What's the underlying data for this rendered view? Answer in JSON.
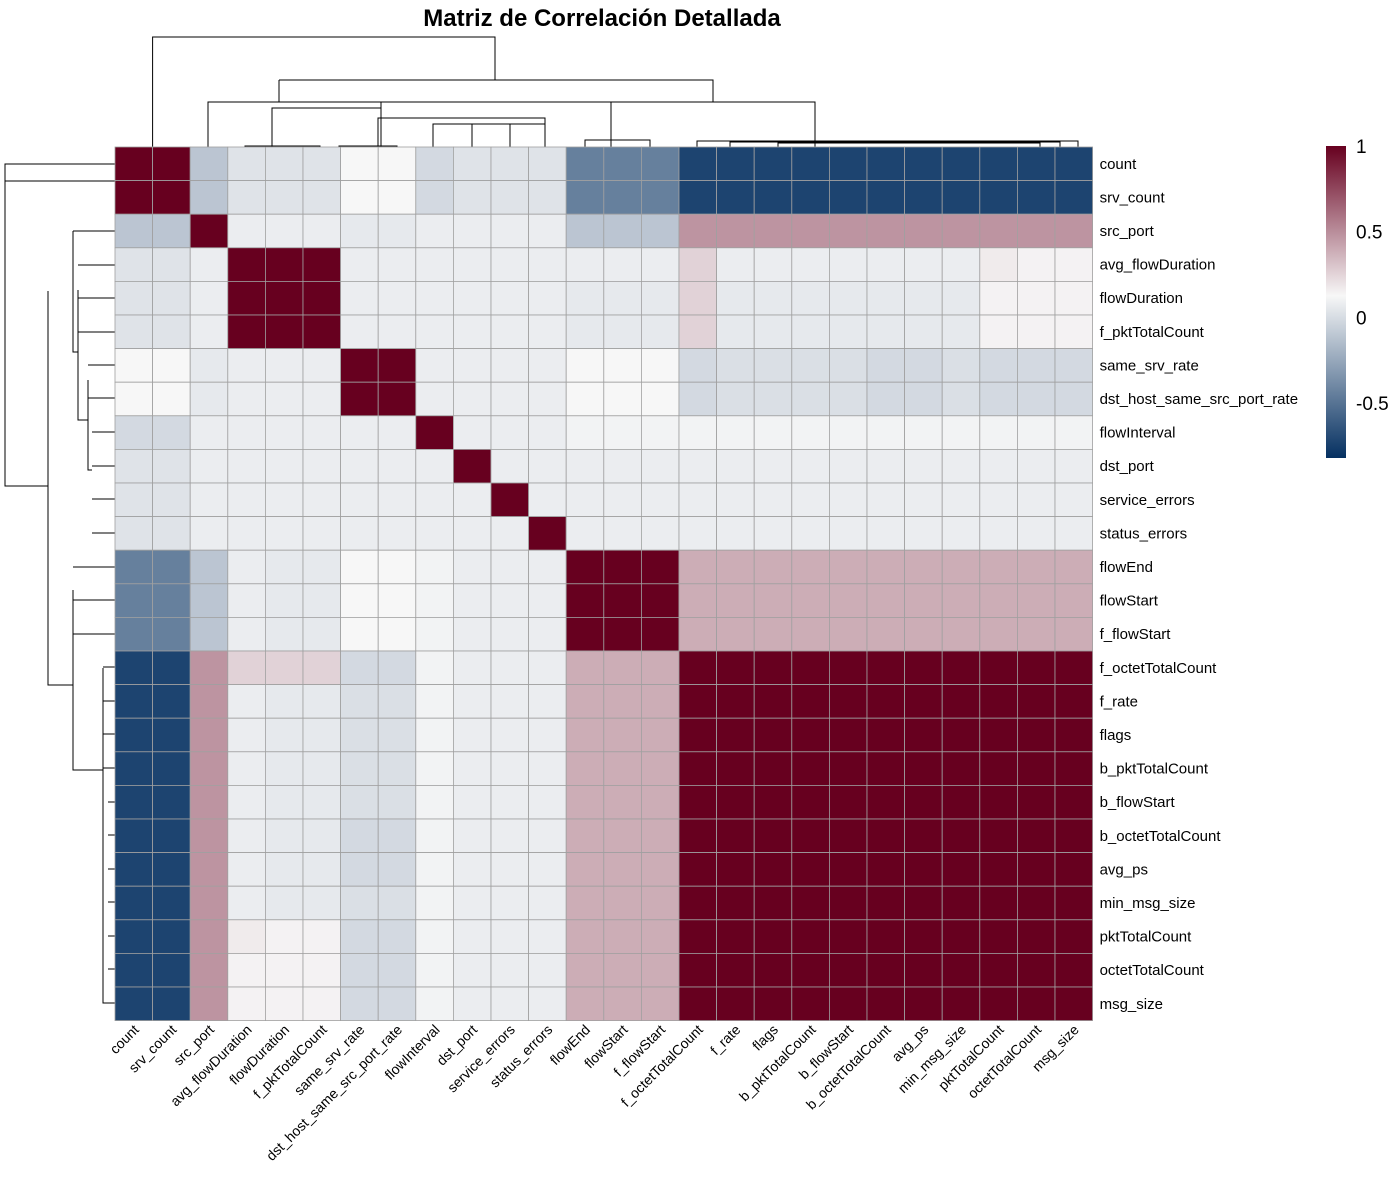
{
  "chart_data": {
    "type": "heatmap",
    "title": "Matriz de Correlación Detallada",
    "row_labels": [
      "count",
      "srv_count",
      "src_port",
      "avg_flowDuration",
      "flowDuration",
      "f_pktTotalCount",
      "same_srv_rate",
      "dst_host_same_src_port_rate",
      "flowInterval",
      "dst_port",
      "service_errors",
      "status_errors",
      "flowEnd",
      "flowStart",
      "f_flowStart",
      "f_octetTotalCount",
      "f_rate",
      "flags",
      "b_pktTotalCount",
      "b_flowStart",
      "b_octetTotalCount",
      "avg_ps",
      "min_msg_size",
      "pktTotalCount",
      "octetTotalCount",
      "msg_size"
    ],
    "col_labels": [
      "count",
      "srv_count",
      "src_port",
      "avg_flowDuration",
      "flowDuration",
      "f_pktTotalCount",
      "same_srv_rate",
      "dst_host_same_src_port_rate",
      "flowInterval",
      "dst_port",
      "service_errors",
      "status_errors",
      "flowEnd",
      "flowStart",
      "f_flowStart",
      "f_octetTotalCount",
      "f_rate",
      "flags",
      "b_pktTotalCount",
      "b_flowStart",
      "b_octetTotalCount",
      "avg_ps",
      "min_msg_size",
      "pktTotalCount",
      "octetTotalCount",
      "msg_size"
    ],
    "values": [
      [
        1,
        1,
        -0.25,
        -0.1,
        -0.1,
        -0.1,
        0,
        0,
        -0.15,
        -0.1,
        -0.1,
        -0.1,
        -0.6,
        -0.6,
        -0.6,
        -0.9,
        -0.9,
        -0.9,
        -0.9,
        -0.9,
        -0.9,
        -0.9,
        -0.9,
        -0.9,
        -0.9,
        -0.9
      ],
      [
        1,
        1,
        -0.25,
        -0.1,
        -0.1,
        -0.1,
        0,
        0,
        -0.15,
        -0.1,
        -0.1,
        -0.1,
        -0.6,
        -0.6,
        -0.6,
        -0.9,
        -0.9,
        -0.9,
        -0.9,
        -0.9,
        -0.9,
        -0.9,
        -0.9,
        -0.9,
        -0.9,
        -0.9
      ],
      [
        -0.25,
        -0.25,
        1,
        -0.05,
        -0.05,
        -0.05,
        -0.07,
        -0.07,
        -0.05,
        -0.05,
        -0.05,
        -0.05,
        -0.25,
        -0.25,
        -0.25,
        0.4,
        0.4,
        0.4,
        0.4,
        0.4,
        0.4,
        0.4,
        0.4,
        0.4,
        0.4,
        0.4
      ],
      [
        -0.1,
        -0.1,
        -0.05,
        1,
        1,
        1,
        -0.05,
        -0.05,
        -0.05,
        -0.05,
        -0.05,
        -0.05,
        -0.05,
        -0.05,
        -0.05,
        0.15,
        -0.05,
        -0.05,
        -0.05,
        -0.05,
        -0.05,
        -0.05,
        -0.05,
        0.05,
        0.02,
        0.02
      ],
      [
        -0.1,
        -0.1,
        -0.05,
        1,
        1,
        1,
        -0.05,
        -0.05,
        -0.05,
        -0.05,
        -0.05,
        -0.05,
        -0.07,
        -0.07,
        -0.07,
        0.15,
        -0.07,
        -0.07,
        -0.07,
        -0.07,
        -0.07,
        -0.07,
        -0.07,
        0.02,
        0.02,
        0.02
      ],
      [
        -0.1,
        -0.1,
        -0.05,
        1,
        1,
        1,
        -0.05,
        -0.05,
        -0.05,
        -0.05,
        -0.05,
        -0.05,
        -0.07,
        -0.07,
        -0.07,
        0.15,
        -0.07,
        -0.07,
        -0.07,
        -0.07,
        -0.07,
        -0.07,
        -0.07,
        0.02,
        0.02,
        0.02
      ],
      [
        0,
        0,
        -0.07,
        -0.05,
        -0.05,
        -0.05,
        1,
        1,
        -0.05,
        -0.05,
        -0.05,
        -0.05,
        0,
        0,
        0,
        -0.15,
        -0.12,
        -0.12,
        -0.12,
        -0.12,
        -0.15,
        -0.15,
        -0.12,
        -0.15,
        -0.15,
        -0.15
      ],
      [
        0,
        0,
        -0.07,
        -0.05,
        -0.05,
        -0.05,
        1,
        1,
        -0.05,
        -0.05,
        -0.05,
        -0.05,
        0,
        0,
        0,
        -0.15,
        -0.12,
        -0.12,
        -0.12,
        -0.12,
        -0.15,
        -0.15,
        -0.12,
        -0.15,
        -0.15,
        -0.15
      ],
      [
        -0.15,
        -0.15,
        -0.05,
        -0.05,
        -0.05,
        -0.05,
        -0.05,
        -0.05,
        1,
        -0.05,
        -0.05,
        -0.05,
        -0.02,
        -0.02,
        -0.02,
        -0.02,
        -0.02,
        -0.02,
        -0.02,
        -0.02,
        -0.02,
        -0.02,
        -0.02,
        -0.02,
        -0.02,
        -0.02
      ],
      [
        -0.1,
        -0.1,
        -0.05,
        -0.05,
        -0.05,
        -0.05,
        -0.05,
        -0.05,
        -0.05,
        1,
        -0.05,
        -0.05,
        -0.05,
        -0.05,
        -0.05,
        -0.05,
        -0.05,
        -0.05,
        -0.05,
        -0.05,
        -0.05,
        -0.05,
        -0.05,
        -0.05,
        -0.05,
        -0.05
      ],
      [
        -0.1,
        -0.1,
        -0.05,
        -0.05,
        -0.05,
        -0.05,
        -0.05,
        -0.05,
        -0.05,
        -0.05,
        1,
        -0.05,
        -0.05,
        -0.05,
        -0.05,
        -0.05,
        -0.05,
        -0.05,
        -0.05,
        -0.05,
        -0.05,
        -0.05,
        -0.05,
        -0.05,
        -0.05,
        -0.05
      ],
      [
        -0.1,
        -0.1,
        -0.05,
        -0.05,
        -0.05,
        -0.05,
        -0.05,
        -0.05,
        -0.05,
        -0.05,
        -0.05,
        1,
        -0.05,
        -0.05,
        -0.05,
        -0.05,
        -0.05,
        -0.05,
        -0.05,
        -0.05,
        -0.05,
        -0.05,
        -0.05,
        -0.05,
        -0.05,
        -0.05
      ],
      [
        -0.6,
        -0.6,
        -0.25,
        -0.05,
        -0.07,
        -0.07,
        0,
        0,
        -0.02,
        -0.05,
        -0.05,
        -0.05,
        1,
        1,
        1,
        0.3,
        0.3,
        0.3,
        0.3,
        0.3,
        0.3,
        0.3,
        0.3,
        0.3,
        0.3,
        0.3
      ],
      [
        -0.6,
        -0.6,
        -0.25,
        -0.05,
        -0.07,
        -0.07,
        0,
        0,
        -0.02,
        -0.05,
        -0.05,
        -0.05,
        1,
        1,
        1,
        0.3,
        0.3,
        0.3,
        0.3,
        0.3,
        0.3,
        0.3,
        0.3,
        0.3,
        0.3,
        0.3
      ],
      [
        -0.6,
        -0.6,
        -0.25,
        -0.05,
        -0.07,
        -0.07,
        0,
        0,
        -0.02,
        -0.05,
        -0.05,
        -0.05,
        1,
        1,
        1,
        0.3,
        0.3,
        0.3,
        0.3,
        0.3,
        0.3,
        0.3,
        0.3,
        0.3,
        0.3,
        0.3
      ],
      [
        -0.9,
        -0.9,
        0.4,
        0.15,
        0.15,
        0.15,
        -0.15,
        -0.15,
        -0.02,
        -0.05,
        -0.05,
        -0.05,
        0.3,
        0.3,
        0.3,
        1,
        1,
        1,
        1,
        1,
        1,
        1,
        1,
        1,
        1,
        1
      ],
      [
        -0.9,
        -0.9,
        0.4,
        -0.05,
        -0.07,
        -0.07,
        -0.12,
        -0.12,
        -0.02,
        -0.05,
        -0.05,
        -0.05,
        0.3,
        0.3,
        0.3,
        1,
        1,
        1,
        1,
        1,
        1,
        1,
        1,
        1,
        1,
        1
      ],
      [
        -0.9,
        -0.9,
        0.4,
        -0.05,
        -0.07,
        -0.07,
        -0.12,
        -0.12,
        -0.02,
        -0.05,
        -0.05,
        -0.05,
        0.3,
        0.3,
        0.3,
        1,
        1,
        1,
        1,
        1,
        1,
        1,
        1,
        1,
        1,
        1
      ],
      [
        -0.9,
        -0.9,
        0.4,
        -0.05,
        -0.07,
        -0.07,
        -0.12,
        -0.12,
        -0.02,
        -0.05,
        -0.05,
        -0.05,
        0.3,
        0.3,
        0.3,
        1,
        1,
        1,
        1,
        1,
        1,
        1,
        1,
        1,
        1,
        1
      ],
      [
        -0.9,
        -0.9,
        0.4,
        -0.05,
        -0.07,
        -0.07,
        -0.12,
        -0.12,
        -0.02,
        -0.05,
        -0.05,
        -0.05,
        0.3,
        0.3,
        0.3,
        1,
        1,
        1,
        1,
        1,
        1,
        1,
        1,
        1,
        1,
        1
      ],
      [
        -0.9,
        -0.9,
        0.4,
        -0.05,
        -0.07,
        -0.07,
        -0.15,
        -0.15,
        -0.02,
        -0.05,
        -0.05,
        -0.05,
        0.3,
        0.3,
        0.3,
        1,
        1,
        1,
        1,
        1,
        1,
        1,
        1,
        1,
        1,
        1
      ],
      [
        -0.9,
        -0.9,
        0.4,
        -0.05,
        -0.07,
        -0.07,
        -0.15,
        -0.15,
        -0.02,
        -0.05,
        -0.05,
        -0.05,
        0.3,
        0.3,
        0.3,
        1,
        1,
        1,
        1,
        1,
        1,
        1,
        1,
        1,
        1,
        1
      ],
      [
        -0.9,
        -0.9,
        0.4,
        -0.05,
        -0.07,
        -0.07,
        -0.12,
        -0.12,
        -0.02,
        -0.05,
        -0.05,
        -0.05,
        0.3,
        0.3,
        0.3,
        1,
        1,
        1,
        1,
        1,
        1,
        1,
        1,
        1,
        1,
        1
      ],
      [
        -0.9,
        -0.9,
        0.4,
        0.05,
        0.02,
        0.02,
        -0.15,
        -0.15,
        -0.02,
        -0.05,
        -0.05,
        -0.05,
        0.3,
        0.3,
        0.3,
        1,
        1,
        1,
        1,
        1,
        1,
        1,
        1,
        1,
        1,
        1
      ],
      [
        -0.9,
        -0.9,
        0.4,
        0.02,
        0.02,
        0.02,
        -0.15,
        -0.15,
        -0.02,
        -0.05,
        -0.05,
        -0.05,
        0.3,
        0.3,
        0.3,
        1,
        1,
        1,
        1,
        1,
        1,
        1,
        1,
        1,
        1,
        1
      ],
      [
        -0.9,
        -0.9,
        0.4,
        0.02,
        0.02,
        0.02,
        -0.15,
        -0.15,
        -0.02,
        -0.05,
        -0.05,
        -0.05,
        0.3,
        0.3,
        0.3,
        1,
        1,
        1,
        1,
        1,
        1,
        1,
        1,
        1,
        1,
        1
      ]
    ],
    "color_scale": {
      "min_color": "#053061",
      "mid_color": "#f7f7f7",
      "max_color": "#67001f",
      "cell_border": "#a0a0a0"
    },
    "legend": {
      "ticks": [
        1,
        0.5,
        0,
        -0.5
      ],
      "tick_labels": [
        "1",
        "0.5",
        "0",
        "-0.5"
      ],
      "placement": "right"
    },
    "dendrograms": {
      "rows": true,
      "columns": true
    }
  }
}
